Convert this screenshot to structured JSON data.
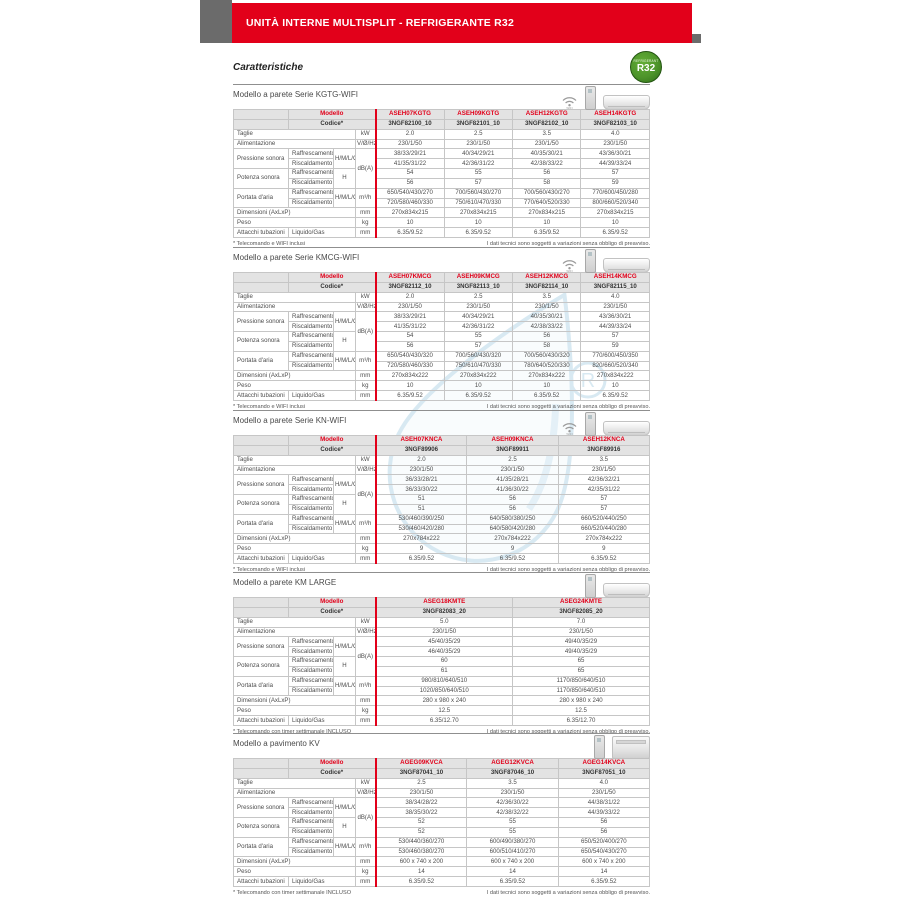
{
  "page": {
    "banner_title": "UNITÀ INTERNE MULTISPLIT - REFRIGERANTE R32",
    "heading": "Caratteristiche",
    "r32_badge": {
      "top_text": "REFRIGERANT",
      "main_text": "R32",
      "color": "#4d942a"
    },
    "accent_red": "#e2001a",
    "disclaimer": "I dati tecnici sono soggetti a variazioni senza obbligo di preavviso."
  },
  "labels": {
    "modello": "Modello",
    "codice": "Codice*",
    "taglie": "Taglie",
    "alimentazione": "Alimentazione",
    "pressione_sonora": "Pressione sonora",
    "potenza_sonora": "Potenza sonora",
    "portata_aria": "Portata d'aria",
    "dimensioni": "Dimensioni (AxLxP)",
    "peso": "Peso",
    "attacchi": "Attacchi tubazioni",
    "raffrescamento": "Raffrescamento",
    "riscaldamento": "Riscaldamento",
    "liquido_gas": "Liquido/Gas",
    "hmlq": "H/M/L/Q",
    "h": "H",
    "units": {
      "kw": "kW",
      "volt": "V/Ø/Hz",
      "db": "dB(A)",
      "m3h": "m³/h",
      "mm": "mm",
      "kg": "kg"
    }
  },
  "sections": [
    {
      "id": "kgtg-wifi",
      "title": "Modello a parete Serie KGTG-WIFI",
      "icons": [
        "wifi-icon",
        "remote-control-image",
        "wall-unit-image"
      ],
      "footnote_left": "* Telecomando e WIFI inclusi",
      "models": [
        "ASEH07KGTG",
        "ASEH09KGTG",
        "ASEH12KGTG",
        "ASEH14KGTG"
      ],
      "codes": [
        "3NGF82100_10",
        "3NGF82101_10",
        "3NGF82102_10",
        "3NGF82103_10"
      ],
      "taglie": [
        "2.0",
        "2.5",
        "3.5",
        "4.0"
      ],
      "alimentazione": [
        "230/1/50",
        "230/1/50",
        "230/1/50",
        "230/1/50"
      ],
      "pressione_raff": [
        "38/33/29/21",
        "40/34/29/21",
        "40/35/30/21",
        "43/36/30/21"
      ],
      "pressione_risc": [
        "41/35/31/22",
        "42/36/31/22",
        "42/38/33/22",
        "44/39/33/24"
      ],
      "potenza_raff": [
        "54",
        "55",
        "56",
        "57"
      ],
      "potenza_risc": [
        "56",
        "57",
        "58",
        "59"
      ],
      "portata_raff": [
        "650/540/430/270",
        "700/560/430/270",
        "700/560/430/270",
        "770/600/450/280"
      ],
      "portata_risc": [
        "720/580/460/330",
        "750/610/470/330",
        "770/640/520/330",
        "800/660/520/340"
      ],
      "dimensioni": [
        "270x834x215",
        "270x834x215",
        "270x834x215",
        "270x834x215"
      ],
      "peso": [
        "10",
        "10",
        "10",
        "10"
      ],
      "attacchi": [
        "6.35/9.52",
        "6.35/9.52",
        "6.35/9.52",
        "6.35/9.52"
      ]
    },
    {
      "id": "kmcg-wifi",
      "title": "Modello a parete Serie KMCG-WIFI",
      "icons": [
        "wifi-icon",
        "remote-control-image",
        "wall-unit-image"
      ],
      "footnote_left": "* Telecomando e WIFI inclusi",
      "models": [
        "ASEH07KMCG",
        "ASEH09KMCG",
        "ASEH12KMCG",
        "ASEH14KMCG"
      ],
      "codes": [
        "3NGF82112_10",
        "3NGF82113_10",
        "3NGF82114_10",
        "3NGF82115_10"
      ],
      "taglie": [
        "2.0",
        "2.5",
        "3.5",
        "4.0"
      ],
      "alimentazione": [
        "230/1/50",
        "230/1/50",
        "230/1/50",
        "230/1/50"
      ],
      "pressione_raff": [
        "38/33/29/21",
        "40/34/29/21",
        "40/35/30/21",
        "43/36/30/21"
      ],
      "pressione_risc": [
        "41/35/31/22",
        "42/36/31/22",
        "42/38/33/22",
        "44/39/33/24"
      ],
      "potenza_raff": [
        "54",
        "55",
        "56",
        "57"
      ],
      "potenza_risc": [
        "56",
        "57",
        "58",
        "59"
      ],
      "portata_raff": [
        "650/540/430/320",
        "700/560/430/320",
        "700/560/430/320",
        "770/600/450/350"
      ],
      "portata_risc": [
        "720/580/460/330",
        "750/610/470/330",
        "780/640/520/330",
        "820/660/520/340"
      ],
      "dimensioni": [
        "270x834x222",
        "270x834x222",
        "270x834x222",
        "270x834x222"
      ],
      "peso": [
        "10",
        "10",
        "10",
        "10"
      ],
      "attacchi": [
        "6.35/9.52",
        "6.35/9.52",
        "6.35/9.52",
        "6.35/9.52"
      ]
    },
    {
      "id": "kn-wifi",
      "title": "Modello a parete Serie KN-WIFI",
      "icons": [
        "wifi-icon",
        "remote-control-image",
        "wall-unit-image"
      ],
      "footnote_left": "* Telecomando e WIFI inclusi",
      "models": [
        "ASEH07KNCA",
        "ASEH09KNCA",
        "ASEH12KNCA"
      ],
      "codes": [
        "3NGF89906",
        "3NGF89911",
        "3NGF89916"
      ],
      "taglie": [
        "2.0",
        "2.5",
        "3.5"
      ],
      "alimentazione": [
        "230/1/50",
        "230/1/50",
        "230/1/50"
      ],
      "pressione_raff": [
        "36/33/28/21",
        "41/35/28/21",
        "42/36/32/21"
      ],
      "pressione_risc": [
        "36/33/30/22",
        "41/36/30/22",
        "42/35/31/22"
      ],
      "potenza_raff": [
        "51",
        "56",
        "57"
      ],
      "potenza_risc": [
        "51",
        "56",
        "57"
      ],
      "portata_raff": [
        "530/460/390/250",
        "640/580/380/250",
        "660/520/440/250"
      ],
      "portata_risc": [
        "530/460/420/280",
        "640/580/420/280",
        "660/520/440/280"
      ],
      "dimensioni": [
        "270x784x222",
        "270x784x222",
        "270x784x222"
      ],
      "peso": [
        "9",
        "9",
        "9"
      ],
      "attacchi": [
        "6.35/9.52",
        "6.35/9.52",
        "6.35/9.52"
      ]
    },
    {
      "id": "km-large",
      "title": "Modello a parete KM LARGE",
      "icons": [
        "remote-control-image",
        "wall-unit-image"
      ],
      "footnote_left": "* Telecomando con timer settimanale INCLUSO",
      "models": [
        "ASEG18KMTE",
        "ASEG24KMTE"
      ],
      "codes": [
        "3NGF82083_20",
        "3NGF82085_20"
      ],
      "taglie": [
        "5.0",
        "7.0"
      ],
      "alimentazione": [
        "230/1/50",
        "230/1/50"
      ],
      "pressione_raff": [
        "45/40/35/29",
        "49/40/35/29"
      ],
      "pressione_risc": [
        "46/40/35/29",
        "49/40/35/29"
      ],
      "potenza_raff": [
        "60",
        "65"
      ],
      "potenza_risc": [
        "61",
        "65"
      ],
      "portata_raff": [
        "980/810/640/510",
        "1170/850/640/510"
      ],
      "portata_risc": [
        "1020/850/640/510",
        "1170/850/640/510"
      ],
      "dimensioni": [
        "280 x 980 x 240",
        "280 x 980 x 240"
      ],
      "peso": [
        "12.5",
        "12.5"
      ],
      "attacchi": [
        "6.35/12.70",
        "6.35/12.70"
      ]
    },
    {
      "id": "pavimento-kv",
      "title": "Modello a pavimento KV",
      "icons": [
        "remote-control-image",
        "floor-unit-image"
      ],
      "footnote_left": "* Telecomando con timer settimanale INCLUSO",
      "models": [
        "AGEG09KVCA",
        "AGEG12KVCA",
        "AGEG14KVCA"
      ],
      "codes": [
        "3NGF87041_10",
        "3NGF87046_10",
        "3NGF87051_10"
      ],
      "taglie": [
        "2.5",
        "3.5",
        "4.0"
      ],
      "alimentazione": [
        "230/1/50",
        "230/1/50",
        "230/1/50"
      ],
      "pressione_raff": [
        "38/34/28/22",
        "42/36/30/22",
        "44/38/31/22"
      ],
      "pressione_risc": [
        "38/35/30/22",
        "42/38/32/22",
        "44/39/33/22"
      ],
      "potenza_raff": [
        "52",
        "55",
        "56"
      ],
      "potenza_risc": [
        "52",
        "55",
        "56"
      ],
      "portata_raff": [
        "530/440/360/270",
        "600/490/380/270",
        "650/520/400/270"
      ],
      "portata_risc": [
        "530/460/380/270",
        "600/510/410/270",
        "650/540/430/270"
      ],
      "dimensioni": [
        "600 x 740 x 200",
        "600 x 740 x 200",
        "600 x 740 x 200"
      ],
      "peso": [
        "14",
        "14",
        "14"
      ],
      "attacchi": [
        "6.35/9.52",
        "6.35/9.52",
        "6.35/9.52"
      ]
    }
  ]
}
